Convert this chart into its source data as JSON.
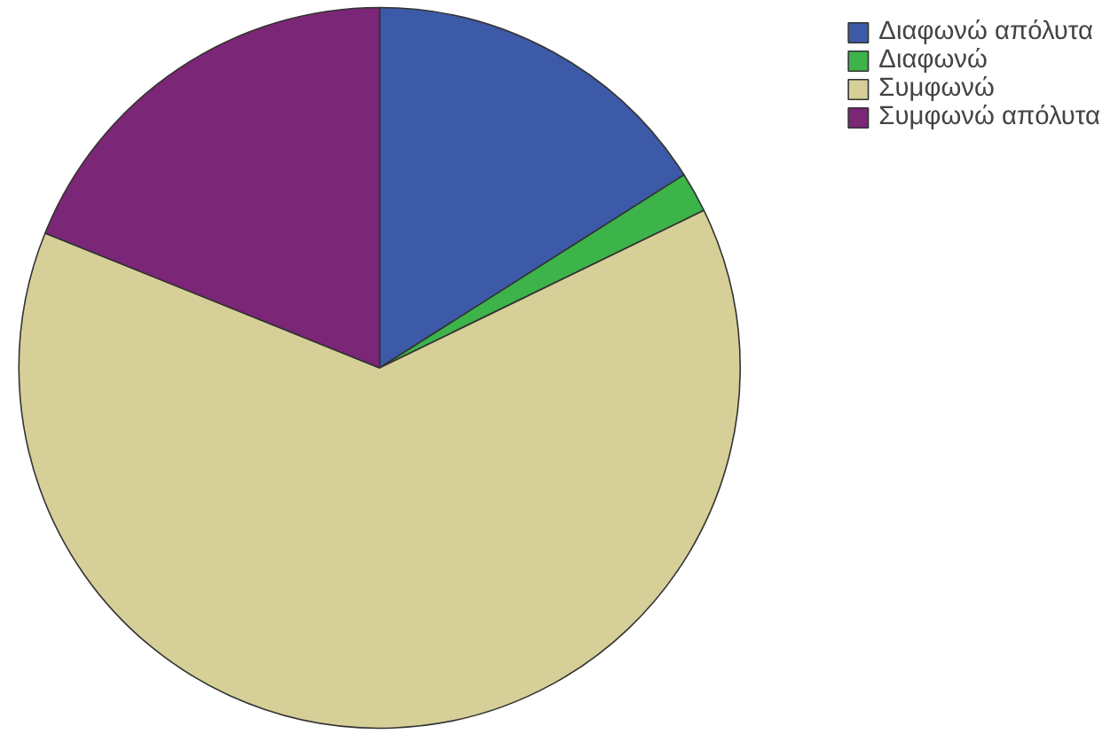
{
  "chart_data": {
    "type": "pie",
    "categories": [
      "Διαφωνώ απόλυτα",
      "Διαφωνώ",
      "Συμφωνώ",
      "Συμφωνώ απόλυτα"
    ],
    "values": [
      16,
      1.8,
      63.3,
      18.9
    ],
    "colors": [
      "#3d5aa8",
      "#3cb44a",
      "#d6cf97",
      "#7b2676"
    ],
    "legend": "top right"
  }
}
